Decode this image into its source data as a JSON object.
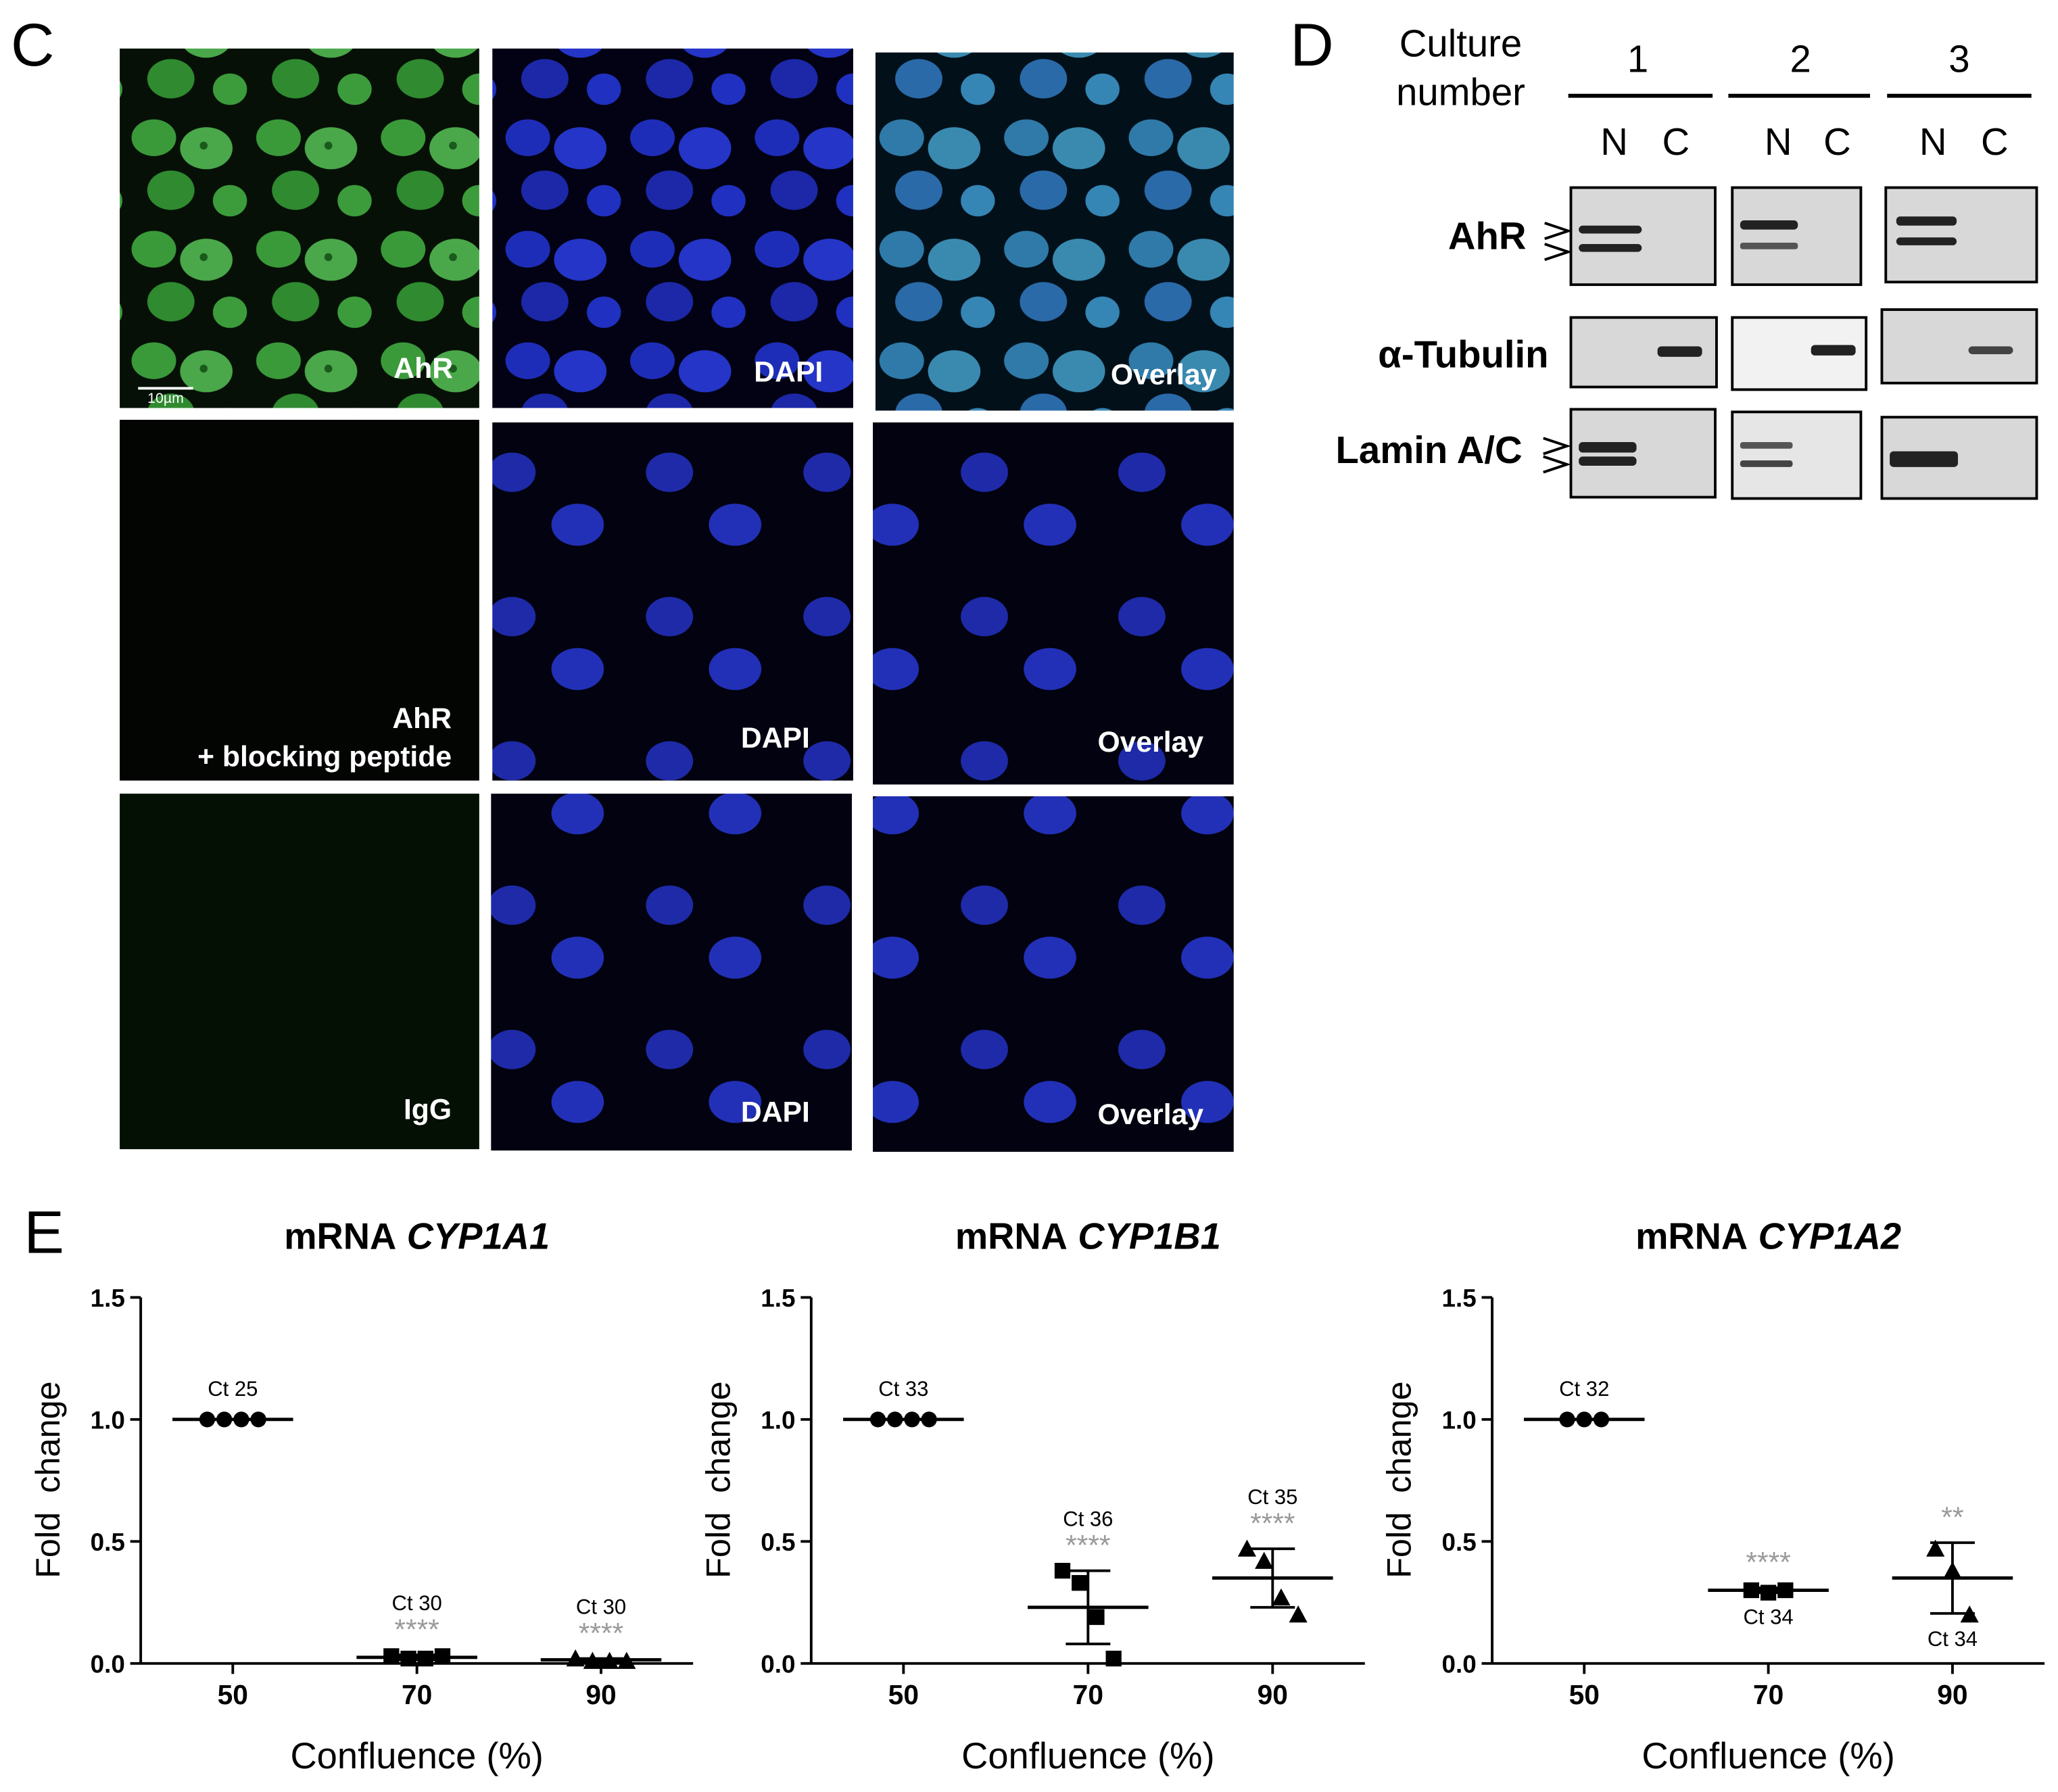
{
  "panel_labels": [
    "C",
    "D",
    "E"
  ],
  "microscopy": {
    "scale_bar": "10µm",
    "labels": [
      [
        [
          "AhR"
        ],
        [
          "DAPI"
        ],
        [
          "Overlay"
        ]
      ],
      [
        [
          "AhR",
          "+ blocking peptide"
        ],
        [
          "DAPI"
        ],
        [
          "Overlay"
        ]
      ],
      [
        [
          "IgG"
        ],
        [
          "DAPI"
        ],
        [
          "Overlay"
        ]
      ]
    ]
  },
  "western": {
    "header": [
      "Culture",
      "number"
    ],
    "cultures": [
      "1",
      "2",
      "3"
    ],
    "lanes": [
      "N",
      "C"
    ],
    "blots": [
      "AhR",
      "α-Tubulin",
      "Lamin A/C"
    ]
  },
  "chart_data": [
    {
      "type": "dot",
      "title": {
        "text": "mRNA",
        "gene": "CYP1A1"
      },
      "xlabel": "Confluence (%)",
      "ylabel": "Fold  change",
      "categories": [
        "50",
        "70",
        "90"
      ],
      "markers": [
        "circle",
        "square",
        "triangle"
      ],
      "color": "#000000",
      "points": [
        [
          1,
          1,
          1,
          1
        ],
        [
          0.03,
          0.02,
          0.02,
          0.03
        ],
        [
          0.02,
          0.01,
          0.01,
          0.01
        ]
      ],
      "mean": [
        1,
        0.025,
        0.015
      ],
      "sd": [
        0,
        0.01,
        0.005
      ],
      "ct_labels": [
        "Ct 25",
        "Ct 30",
        "Ct 30"
      ],
      "ct_label_position": "above",
      "stars": [
        null,
        "****",
        "****"
      ],
      "stars_color": "#9a9a9a",
      "ylim": [
        0,
        1.5
      ],
      "yticks": [
        {
          "value": 0,
          "label": "0.0"
        },
        0.5,
        {
          "value": 1,
          "label": "1.0"
        },
        1.5
      ]
    },
    {
      "type": "dot",
      "title": {
        "text": "mRNA",
        "gene": "CYP1B1"
      },
      "xlabel": "Confluence (%)",
      "ylabel": "Fold  change",
      "categories": [
        "50",
        "70",
        "90"
      ],
      "markers": [
        "circle",
        "square",
        "triangle"
      ],
      "color": "#000000",
      "points": [
        [
          1,
          1,
          1,
          1
        ],
        [
          0.38,
          0.33,
          0.19,
          0.02
        ],
        [
          0.47,
          0.42,
          0.27,
          0.2
        ]
      ],
      "mean": [
        1,
        0.23,
        0.35
      ],
      "sd": [
        0,
        0.15,
        0.12
      ],
      "ct_labels": [
        "Ct 33",
        "Ct 36",
        "Ct 35"
      ],
      "ct_label_position": "above",
      "stars": [
        null,
        "****",
        "****"
      ],
      "stars_color": "#9a9a9a",
      "ylim": [
        0,
        1.5
      ],
      "yticks": [
        {
          "value": 0,
          "label": "0.0"
        },
        0.5,
        {
          "value": 1,
          "label": "1.0"
        },
        1.5
      ]
    },
    {
      "type": "dot",
      "title": {
        "text": "mRNA",
        "gene": "CYP1A2"
      },
      "xlabel": "Confluence (%)",
      "ylabel": "Fold  change",
      "categories": [
        "50",
        "70",
        "90"
      ],
      "markers": [
        "circle",
        "square",
        "triangle"
      ],
      "color": "#000000",
      "points": [
        [
          1,
          1,
          1
        ],
        [
          0.3,
          0.29,
          0.3
        ],
        [
          0.47,
          0.38,
          0.2
        ]
      ],
      "mean": [
        1,
        0.3,
        0.35
      ],
      "sd": [
        0,
        0.01,
        0.145
      ],
      "ct_labels": [
        "Ct 32",
        "Ct 34",
        "Ct 34"
      ],
      "ct_label_position": "below",
      "stars": [
        null,
        "****",
        "**"
      ],
      "stars_color": "#9a9a9a",
      "ylim": [
        0,
        1.5
      ],
      "yticks": [
        {
          "value": 0,
          "label": "0.0"
        },
        0.5,
        {
          "value": 1,
          "label": "1.0"
        },
        1.5
      ]
    }
  ]
}
